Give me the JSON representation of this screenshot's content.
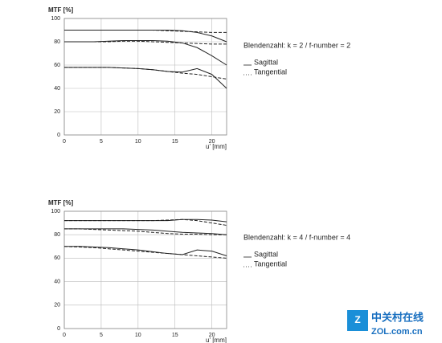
{
  "chart_data": [
    {
      "type": "line",
      "y_label": "MTF [%]",
      "x_label": "u' [mm]",
      "note": "Blendenzahl: k = 2 / f-number = 2",
      "legend": [
        {
          "label": "Sagittal",
          "style": "solid"
        },
        {
          "label": "Tangential",
          "style": "dashed"
        }
      ],
      "x": [
        0,
        2,
        4,
        6,
        8,
        10,
        12,
        14,
        16,
        18,
        20,
        22
      ],
      "xlim": [
        0,
        22
      ],
      "xticks": [
        0,
        5,
        10,
        15,
        20
      ],
      "ylim": [
        0,
        100
      ],
      "yticks": [
        0,
        20,
        40,
        60,
        80,
        100
      ],
      "grid": true,
      "color": "#222222",
      "series": [
        {
          "style": "solid",
          "values": [
            90,
            90,
            90,
            90,
            90,
            90,
            90,
            90,
            89.5,
            88,
            85,
            80
          ]
        },
        {
          "style": "dashed",
          "values": [
            90,
            90,
            90,
            90,
            90,
            90,
            90,
            89.5,
            89,
            88.5,
            88,
            88
          ]
        },
        {
          "style": "solid",
          "values": [
            80,
            80,
            80,
            80.5,
            81,
            81,
            81,
            80.5,
            79,
            75,
            68,
            60
          ]
        },
        {
          "style": "dashed",
          "values": [
            80,
            80,
            80,
            80,
            80.5,
            80.5,
            80,
            79.5,
            79,
            78.5,
            78,
            78
          ]
        },
        {
          "style": "solid",
          "values": [
            58,
            58,
            58,
            58,
            57.5,
            57,
            56,
            54.5,
            54,
            57,
            52,
            40
          ]
        },
        {
          "style": "dashed",
          "values": [
            58,
            58,
            58,
            58,
            57.5,
            57,
            56,
            54.5,
            53,
            52,
            50,
            48
          ]
        }
      ]
    },
    {
      "type": "line",
      "y_label": "MTF [%]",
      "x_label": "u' [mm]",
      "note": "Blendenzahl: k = 4 / f-number = 4",
      "legend": [
        {
          "label": "Sagittal",
          "style": "solid"
        },
        {
          "label": "Tangential",
          "style": "dashed"
        }
      ],
      "x": [
        0,
        2,
        4,
        6,
        8,
        10,
        12,
        14,
        16,
        18,
        20,
        22
      ],
      "xlim": [
        0,
        22
      ],
      "xticks": [
        0,
        5,
        10,
        15,
        20
      ],
      "ylim": [
        0,
        100
      ],
      "yticks": [
        0,
        20,
        40,
        60,
        80,
        100
      ],
      "grid": true,
      "color": "#222222",
      "series": [
        {
          "style": "solid",
          "values": [
            92,
            92,
            92,
            92,
            92,
            92,
            92,
            92,
            93,
            93,
            92.5,
            91
          ]
        },
        {
          "style": "dashed",
          "values": [
            92,
            92,
            92,
            92,
            92,
            92,
            92,
            92.5,
            93,
            92,
            90,
            88
          ]
        },
        {
          "style": "solid",
          "values": [
            85,
            85,
            85,
            85,
            85,
            84.5,
            84,
            83,
            82,
            81.5,
            81,
            80
          ]
        },
        {
          "style": "dashed",
          "values": [
            85,
            85,
            84.5,
            84,
            83.5,
            83,
            82,
            81,
            80.5,
            80.5,
            80,
            80
          ]
        },
        {
          "style": "solid",
          "values": [
            70,
            70,
            69.5,
            69,
            68,
            67,
            65.5,
            64,
            63,
            67,
            66,
            62
          ]
        },
        {
          "style": "dashed",
          "values": [
            70,
            69.5,
            69,
            68,
            67,
            66,
            65,
            64,
            63,
            62,
            61,
            60
          ]
        }
      ]
    }
  ],
  "watermark": {
    "title": "中关村在线",
    "url": "ZOL.com.cn"
  }
}
